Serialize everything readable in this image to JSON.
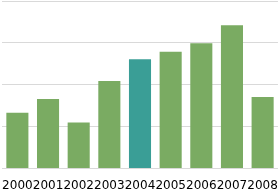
{
  "chart_data": {
    "type": "bar",
    "categories": [
      "2000",
      "2001",
      "2002",
      "2003",
      "2004",
      "2005",
      "2006",
      "2007",
      "2008"
    ],
    "values": [
      1.33,
      1.66,
      1.1,
      2.09,
      2.61,
      2.79,
      2.99,
      3.42,
      1.71
    ],
    "colors": [
      "#7aab62",
      "#7aab62",
      "#7aab62",
      "#7aab62",
      "#3a9e96",
      "#7aab62",
      "#7aab62",
      "#7aab62",
      "#7aab62"
    ],
    "ylim": [
      0,
      4
    ],
    "yticks": [
      0,
      1,
      2,
      3,
      4
    ],
    "grid": true,
    "tick_labels": "x"
  }
}
